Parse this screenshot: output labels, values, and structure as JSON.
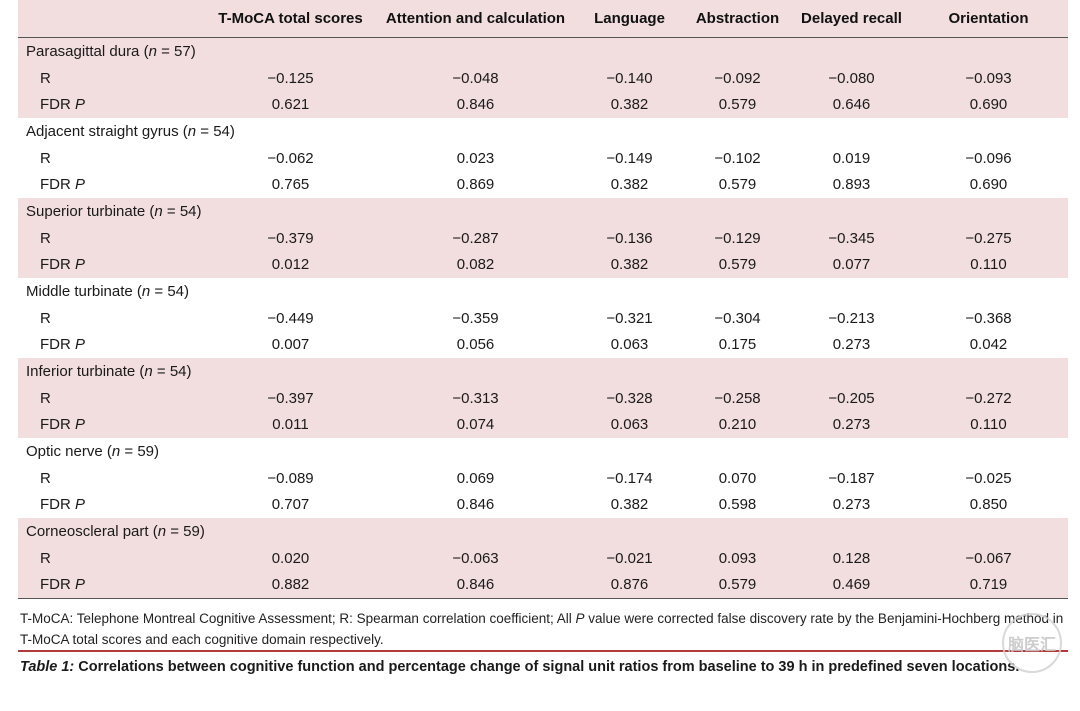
{
  "headers": [
    "",
    "T-MoCA total scores",
    "Attention and calculation",
    "Language",
    "Abstraction",
    "Delayed recall",
    "Orientation"
  ],
  "groups": [
    {
      "name": "Parasagittal dura (",
      "n_label": "n",
      "n_value": " = 57)",
      "r_label": "R",
      "r": [
        "−0.125",
        "−0.048",
        "−0.140",
        "−0.092",
        "−0.080",
        "−0.093"
      ],
      "p_label": "FDR ",
      "p_label_italic": "P",
      "p": [
        "0.621",
        "0.846",
        "0.382",
        "0.579",
        "0.646",
        "0.690"
      ]
    },
    {
      "name": "Adjacent straight gyrus (",
      "n_label": "n",
      "n_value": " = 54)",
      "r_label": "R",
      "r": [
        "−0.062",
        "0.023",
        "−0.149",
        "−0.102",
        "0.019",
        "−0.096"
      ],
      "p_label": "FDR ",
      "p_label_italic": "P",
      "p": [
        "0.765",
        "0.869",
        "0.382",
        "0.579",
        "0.893",
        "0.690"
      ]
    },
    {
      "name": "Superior turbinate (",
      "n_label": "n",
      "n_value": " = 54)",
      "r_label": "R",
      "r": [
        "−0.379",
        "−0.287",
        "−0.136",
        "−0.129",
        "−0.345",
        "−0.275"
      ],
      "p_label": "FDR ",
      "p_label_italic": "P",
      "p": [
        "0.012",
        "0.082",
        "0.382",
        "0.579",
        "0.077",
        "0.110"
      ]
    },
    {
      "name": "Middle turbinate (",
      "n_label": "n",
      "n_value": " = 54)",
      "r_label": "R",
      "r": [
        "−0.449",
        "−0.359",
        "−0.321",
        "−0.304",
        "−0.213",
        "−0.368"
      ],
      "p_label": "FDR ",
      "p_label_italic": "P",
      "p": [
        "0.007",
        "0.056",
        "0.063",
        "0.175",
        "0.273",
        "0.042"
      ]
    },
    {
      "name": "Inferior turbinate (",
      "n_label": "n",
      "n_value": " = 54)",
      "r_label": "R",
      "r": [
        "−0.397",
        "−0.313",
        "−0.328",
        "−0.258",
        "−0.205",
        "−0.272"
      ],
      "p_label": "FDR ",
      "p_label_italic": "P",
      "p": [
        "0.011",
        "0.074",
        "0.063",
        "0.210",
        "0.273",
        "0.110"
      ]
    },
    {
      "name": "Optic nerve (",
      "n_label": "n",
      "n_value": " = 59)",
      "r_label": "R",
      "r": [
        "−0.089",
        "0.069",
        "−0.174",
        "0.070",
        "−0.187",
        "−0.025"
      ],
      "p_label": "FDR ",
      "p_label_italic": "P",
      "p": [
        "0.707",
        "0.846",
        "0.382",
        "0.598",
        "0.273",
        "0.850"
      ]
    },
    {
      "name": "Corneoscleral part (",
      "n_label": "n",
      "n_value": " = 59)",
      "r_label": "R",
      "r": [
        "0.020",
        "−0.063",
        "−0.021",
        "0.093",
        "0.128",
        "−0.067"
      ],
      "p_label": "FDR ",
      "p_label_italic": "P",
      "p": [
        "0.882",
        "0.846",
        "0.876",
        "0.579",
        "0.469",
        "0.719"
      ]
    }
  ],
  "footnote": {
    "part1": "T-MoCA: Telephone Montreal Cognitive Assessment; R: Spearman correlation coefficient; All ",
    "part_italic": "P",
    "part2": " value were corrected false discovery rate by the Benjamini-Hochberg method in T-MoCA total scores and each cognitive domain respectively."
  },
  "caption": {
    "label": "Table 1:",
    "text": " Correlations between cognitive function and percentage change of signal unit ratios from baseline to 39 h in predefined seven locations."
  },
  "watermark_text": "脑医汇",
  "colors": {
    "band": "#f2dede",
    "rule": "#b23a3a"
  }
}
